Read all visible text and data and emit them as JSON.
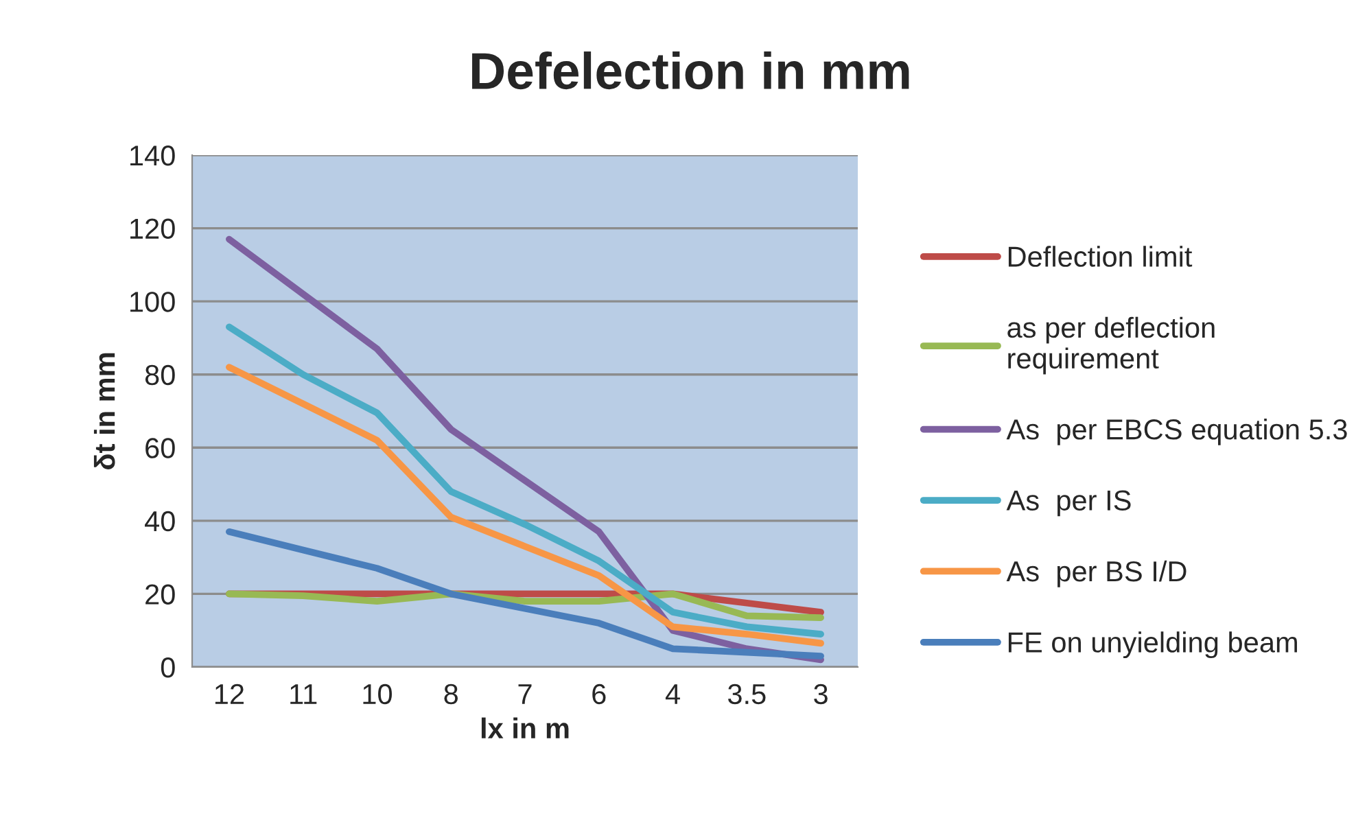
{
  "chart_data": {
    "type": "line",
    "title": "Defelection in mm",
    "xlabel": "lx in m",
    "ylabel": "δt in mm",
    "categories": [
      "12",
      "11",
      "10",
      "8",
      "7",
      "6",
      "4",
      "3.5",
      "3"
    ],
    "series": [
      {
        "name": "Deflection limit",
        "color": "#be4b48",
        "values": [
          20,
          20,
          20,
          20,
          20,
          20,
          20,
          17.5,
          15
        ]
      },
      {
        "name": "as per deflection requirement",
        "color": "#98b954",
        "values": [
          20,
          19.5,
          18,
          20,
          18,
          18,
          20,
          14,
          13.5
        ]
      },
      {
        "name": "As  per EBCS equation 5.3",
        "color": "#7d60a0",
        "values": [
          117,
          102,
          87,
          65,
          51,
          37,
          10,
          5,
          2
        ]
      },
      {
        "name": "As  per IS",
        "color": "#4bacc6",
        "values": [
          93,
          80,
          69.5,
          48,
          39,
          29,
          15,
          11,
          9
        ]
      },
      {
        "name": "As  per BS I/D",
        "color": "#f79646",
        "values": [
          82,
          72,
          62,
          41,
          33,
          25,
          11,
          9,
          6.5
        ]
      },
      {
        "name": "FE on unyielding beam",
        "color": "#4a7ebb",
        "values": [
          37,
          32,
          27,
          20,
          16,
          12,
          5,
          4,
          3
        ]
      }
    ],
    "ylim": [
      0,
      140
    ],
    "yticks": [
      0,
      20,
      40,
      60,
      80,
      100,
      120,
      140
    ],
    "grid": "y",
    "legend": "right",
    "marker": "none",
    "line_style": "solid"
  }
}
